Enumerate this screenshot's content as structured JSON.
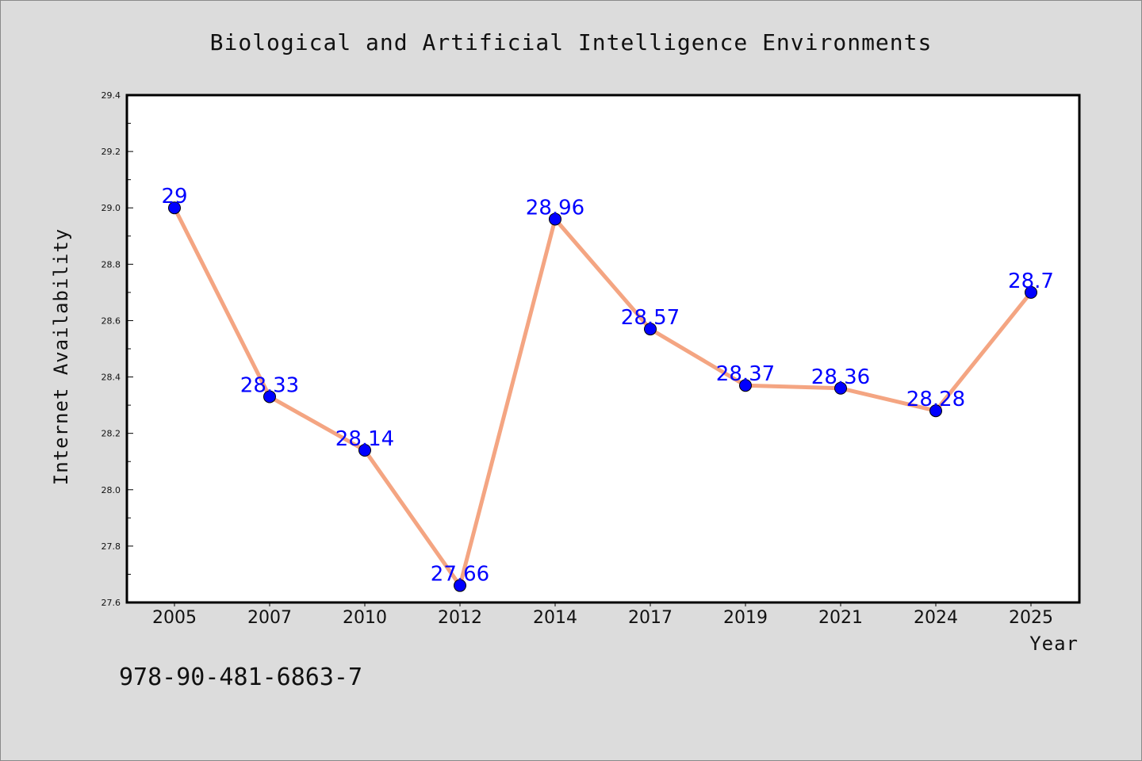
{
  "chart_data": {
    "type": "line",
    "title": "Biological and Artificial Intelligence Environments",
    "xlabel": "Year",
    "ylabel": "Internet Availability",
    "categories": [
      "2005",
      "2007",
      "2010",
      "2012",
      "2014",
      "2017",
      "2019",
      "2021",
      "2024",
      "2025"
    ],
    "series": [
      {
        "values": [
          29,
          28.33,
          28.14,
          27.66,
          28.96,
          28.57,
          28.37,
          28.36,
          28.28,
          28.7
        ],
        "line_color": "#f4a582",
        "marker_color": "#0000ff"
      }
    ],
    "data_labels": [
      "29",
      "28.33",
      "28.14",
      "27.66",
      "28.96",
      "28.57",
      "28.37",
      "28.36",
      "28.28",
      "28.7"
    ],
    "ylim": [
      27.6,
      29.4
    ],
    "yticks": [
      "27.6",
      "27.8",
      "28.0",
      "28.2",
      "28.4",
      "28.6",
      "28.8",
      "29.0",
      "29.2",
      "29.4"
    ],
    "grid": false,
    "legend": "none",
    "label_color": "#0000ff"
  },
  "annotation": {
    "isbn": "978-90-481-6863-7"
  }
}
